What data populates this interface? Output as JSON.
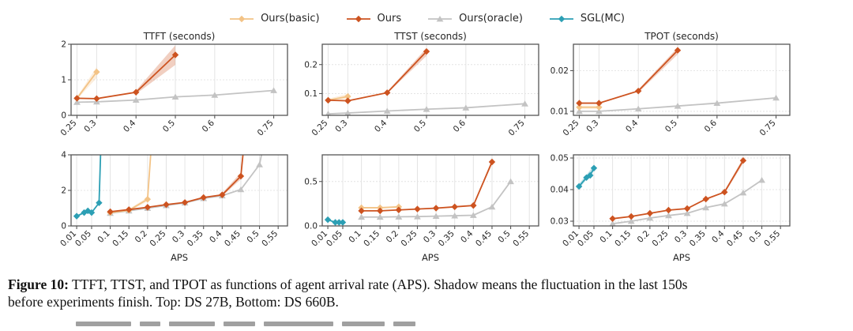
{
  "legend": {
    "items": [
      {
        "label": "Ours(basic)",
        "color": "#f3c386",
        "marker": "diamond"
      },
      {
        "label": "Ours",
        "color": "#cd5320",
        "marker": "diamond"
      },
      {
        "label": "Ours(oracle)",
        "color": "#c3c3c3",
        "marker": "triangle"
      },
      {
        "label": "SGL(MC)",
        "color": "#2c9fb4",
        "marker": "diamond"
      }
    ]
  },
  "style": {
    "spine_color": "#565656",
    "grid_color": "#e4e4e4",
    "text_color": "#262626",
    "band_opacity": 0.28
  },
  "caption": {
    "label": "Figure 10:",
    "line1": " TTFT, TTST, and TPOT as functions of agent arrival rate (APS). Shadow means the fluctuation in the last 150s",
    "line2": "before experiments finish. Top: DS 27B, Bottom: DS 660B."
  },
  "chart_data": [
    {
      "type": "line",
      "title": "TTFT (seconds)",
      "model": "DS 27B",
      "xlabel": "",
      "xlim": [
        0.235,
        0.785
      ],
      "ylim": [
        0,
        2
      ],
      "xticks": {
        "values": [
          0.25,
          0.3,
          0.4,
          0.5,
          0.6,
          0.75
        ],
        "labels": [
          "0.25",
          "0.3",
          "0.4",
          "0.5",
          "0.6",
          "0.75"
        ]
      },
      "yticks": {
        "values": [
          0,
          1,
          2
        ],
        "labels": [
          "0",
          "1",
          "2"
        ]
      },
      "series": [
        {
          "name": "Ours(oracle)",
          "x": [
            0.25,
            0.3,
            0.4,
            0.5,
            0.6,
            0.75
          ],
          "y": [
            0.37,
            0.38,
            0.43,
            0.52,
            0.57,
            0.7
          ]
        },
        {
          "name": "Ours(basic)",
          "x": [
            0.25,
            0.3
          ],
          "y": [
            0.48,
            1.22
          ],
          "band": {
            "x": [
              0.25,
              0.3
            ],
            "lo": [
              0.45,
              1.05
            ],
            "hi": [
              0.52,
              1.36
            ]
          }
        },
        {
          "name": "Ours",
          "x": [
            0.25,
            0.3,
            0.4,
            0.5
          ],
          "y": [
            0.48,
            0.47,
            0.65,
            1.7
          ],
          "band": {
            "x": [
              0.4,
              0.5
            ],
            "lo": [
              0.6,
              1.42
            ],
            "hi": [
              0.7,
              1.97
            ]
          }
        }
      ]
    },
    {
      "type": "line",
      "title": "TTST (seconds)",
      "model": "DS 27B",
      "xlabel": "",
      "xlim": [
        0.235,
        0.785
      ],
      "ylim": [
        0.025,
        0.27
      ],
      "xticks": {
        "values": [
          0.25,
          0.3,
          0.4,
          0.5,
          0.6,
          0.75
        ],
        "labels": [
          "0.25",
          "0.3",
          "0.4",
          "0.5",
          "0.6",
          "0.75"
        ]
      },
      "yticks": {
        "values": [
          0.1,
          0.2
        ],
        "labels": [
          "0.1",
          "0.2"
        ]
      },
      "series": [
        {
          "name": "Ours(oracle)",
          "x": [
            0.25,
            0.3,
            0.4,
            0.5,
            0.6,
            0.75
          ],
          "y": [
            0.03,
            0.033,
            0.04,
            0.046,
            0.051,
            0.065
          ]
        },
        {
          "name": "Ours(basic)",
          "x": [
            0.25,
            0.3
          ],
          "y": [
            0.077,
            0.09
          ],
          "band": {
            "x": [
              0.25,
              0.3
            ],
            "lo": [
              0.073,
              0.081
            ],
            "hi": [
              0.082,
              0.099
            ]
          }
        },
        {
          "name": "Ours",
          "x": [
            0.25,
            0.3,
            0.4,
            0.5
          ],
          "y": [
            0.077,
            0.075,
            0.103,
            0.245
          ],
          "band": {
            "x": [
              0.4,
              0.5
            ],
            "lo": [
              0.1,
              0.23
            ],
            "hi": [
              0.107,
              0.257
            ]
          }
        }
      ]
    },
    {
      "type": "line",
      "title": "TPOT (seconds)",
      "model": "DS 27B",
      "xlabel": "",
      "xlim": [
        0.235,
        0.785
      ],
      "ylim": [
        0.009,
        0.0265
      ],
      "xticks": {
        "values": [
          0.25,
          0.3,
          0.4,
          0.5,
          0.6,
          0.75
        ],
        "labels": [
          "0.25",
          "0.3",
          "0.4",
          "0.5",
          "0.6",
          "0.75"
        ]
      },
      "yticks": {
        "values": [
          0.01,
          0.02
        ],
        "labels": [
          "0.01",
          "0.02"
        ]
      },
      "series": [
        {
          "name": "Ours(oracle)",
          "x": [
            0.25,
            0.3,
            0.4,
            0.5,
            0.6,
            0.75
          ],
          "y": [
            0.01,
            0.01,
            0.0106,
            0.0113,
            0.012,
            0.0133
          ]
        },
        {
          "name": "Ours(basic)",
          "x": [
            0.25,
            0.3
          ],
          "y": [
            0.011,
            0.011
          ],
          "band": {
            "x": [
              0.25,
              0.3
            ],
            "lo": [
              0.0106,
              0.0106
            ],
            "hi": [
              0.0114,
              0.0114
            ]
          }
        },
        {
          "name": "Ours",
          "x": [
            0.25,
            0.3,
            0.4,
            0.5
          ],
          "y": [
            0.012,
            0.012,
            0.015,
            0.025
          ],
          "band": {
            "x": [
              0.4,
              0.5
            ],
            "lo": [
              0.0146,
              0.024
            ],
            "hi": [
              0.0154,
              0.0257
            ]
          }
        }
      ]
    },
    {
      "type": "line",
      "title": "",
      "model": "DS 660B",
      "xlabel": "APS",
      "xlim": [
        -0.005,
        0.575
      ],
      "ylim": [
        0,
        4
      ],
      "xticks": {
        "values": [
          0.01,
          0.05,
          0.1,
          0.15,
          0.2,
          0.25,
          0.3,
          0.35,
          0.4,
          0.45,
          0.5,
          0.55
        ],
        "labels": [
          "0.01",
          "0.05",
          "0.1",
          "0.15",
          "0.2",
          "0.25",
          "0.3",
          "0.35",
          "0.4",
          "0.45",
          "0.5",
          "0.55"
        ]
      },
      "yticks": {
        "values": [
          0,
          2,
          4
        ],
        "labels": [
          "0",
          "2",
          "4"
        ]
      },
      "series": [
        {
          "name": "Ours(oracle)",
          "x": [
            0.1,
            0.15,
            0.2,
            0.25,
            0.3,
            0.35,
            0.4,
            0.45,
            0.5,
            0.525
          ],
          "y": [
            0.72,
            0.85,
            1.0,
            1.15,
            1.3,
            1.55,
            1.7,
            2.05,
            3.45,
            6
          ]
        },
        {
          "name": "Ours(basic)",
          "x": [
            0.1,
            0.15,
            0.2,
            0.215
          ],
          "y": [
            0.75,
            0.88,
            1.5,
            6
          ],
          "band": {
            "x": [
              0.15,
              0.2
            ],
            "lo": [
              0.82,
              1.38
            ],
            "hi": [
              0.95,
              1.62
            ]
          }
        },
        {
          "name": "Ours",
          "x": [
            0.1,
            0.15,
            0.2,
            0.25,
            0.3,
            0.35,
            0.4,
            0.45,
            0.465
          ],
          "y": [
            0.8,
            0.92,
            1.05,
            1.2,
            1.32,
            1.6,
            1.75,
            2.8,
            6
          ],
          "band": {
            "x": [
              0.4,
              0.45
            ],
            "lo": [
              1.68,
              2.62
            ],
            "hi": [
              1.85,
              3.0
            ]
          }
        },
        {
          "name": "SGL(MC)",
          "x": [
            0.01,
            0.03,
            0.04,
            0.05,
            0.07,
            0.077
          ],
          "y": [
            0.55,
            0.75,
            0.85,
            0.75,
            1.3,
            6
          ]
        }
      ]
    },
    {
      "type": "line",
      "title": "",
      "model": "DS 660B",
      "xlabel": "APS",
      "xlim": [
        -0.005,
        0.575
      ],
      "ylim": [
        0,
        0.8
      ],
      "xticks": {
        "values": [
          0.01,
          0.05,
          0.1,
          0.15,
          0.2,
          0.25,
          0.3,
          0.35,
          0.4,
          0.45,
          0.5,
          0.55
        ],
        "labels": [
          "0.01",
          "0.05",
          "0.1",
          "0.15",
          "0.2",
          "0.25",
          "0.3",
          "0.35",
          "0.4",
          "0.45",
          "0.5",
          "0.55"
        ]
      },
      "yticks": {
        "values": [
          0.0,
          0.5
        ],
        "labels": [
          "0.0",
          "0.5"
        ]
      },
      "series": [
        {
          "name": "Ours(oracle)",
          "x": [
            0.1,
            0.15,
            0.2,
            0.25,
            0.3,
            0.35,
            0.4,
            0.45,
            0.5
          ],
          "y": [
            0.1,
            0.1,
            0.103,
            0.105,
            0.11,
            0.115,
            0.12,
            0.215,
            0.5
          ]
        },
        {
          "name": "Ours(basic)",
          "x": [
            0.1,
            0.15,
            0.2
          ],
          "y": [
            0.205,
            0.205,
            0.215
          ]
        },
        {
          "name": "Ours",
          "x": [
            0.1,
            0.15,
            0.2,
            0.25,
            0.3,
            0.35,
            0.4,
            0.45
          ],
          "y": [
            0.17,
            0.17,
            0.18,
            0.19,
            0.2,
            0.215,
            0.23,
            0.72
          ],
          "band": {
            "x": [
              0.4,
              0.45
            ],
            "lo": [
              0.223,
              0.695
            ],
            "hi": [
              0.238,
              0.748
            ]
          }
        },
        {
          "name": "SGL(MC)",
          "x": [
            0.01,
            0.03,
            0.04,
            0.05
          ],
          "y": [
            0.07,
            0.04,
            0.04,
            0.04
          ]
        }
      ]
    },
    {
      "type": "line",
      "title": "",
      "model": "DS 660B",
      "xlabel": "APS",
      "xlim": [
        -0.005,
        0.575
      ],
      "ylim": [
        0.0285,
        0.051
      ],
      "xticks": {
        "values": [
          0.01,
          0.05,
          0.1,
          0.15,
          0.2,
          0.25,
          0.3,
          0.35,
          0.4,
          0.45,
          0.5,
          0.55
        ],
        "labels": [
          "0.01",
          "0.05",
          "0.1",
          "0.15",
          "0.2",
          "0.25",
          "0.3",
          "0.35",
          "0.4",
          "0.45",
          "0.5",
          "0.55"
        ]
      },
      "yticks": {
        "values": [
          0.03,
          0.04,
          0.05
        ],
        "labels": [
          "0.03",
          "0.04",
          "0.05"
        ]
      },
      "series": [
        {
          "name": "Ours(oracle)",
          "x": [
            0.1,
            0.15,
            0.2,
            0.25,
            0.3,
            0.35,
            0.4,
            0.45,
            0.5
          ],
          "y": [
            0.0292,
            0.03,
            0.031,
            0.0318,
            0.0325,
            0.0343,
            0.0355,
            0.039,
            0.043
          ]
        },
        {
          "name": "Ours",
          "x": [
            0.1,
            0.15,
            0.2,
            0.25,
            0.3,
            0.35,
            0.4,
            0.45
          ],
          "y": [
            0.0308,
            0.0315,
            0.0325,
            0.0335,
            0.034,
            0.037,
            0.0392,
            0.0492
          ],
          "band": {
            "x": [
              0.4,
              0.45
            ],
            "lo": [
              0.0387,
              0.0483
            ],
            "hi": [
              0.0397,
              0.05
            ]
          }
        },
        {
          "name": "SGL(MC)",
          "x": [
            0.01,
            0.03,
            0.04,
            0.05
          ],
          "y": [
            0.041,
            0.0438,
            0.0445,
            0.0468
          ],
          "band": {
            "x": [
              0.01,
              0.05
            ],
            "lo": [
              0.0403,
              0.0459
            ],
            "hi": [
              0.0418,
              0.0476
            ]
          }
        }
      ]
    }
  ]
}
